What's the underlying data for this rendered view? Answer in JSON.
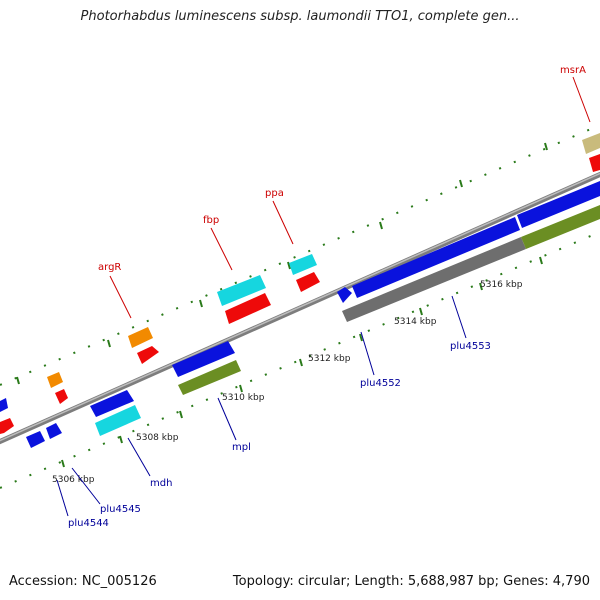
{
  "title": "Photorhabdus luminescens subsp. laumondii TTO1, complete gen...",
  "footer": {
    "accession": "Accession: NC_005126",
    "summary": "Topology: circular; Length: 5,688,987 bp; Genes: 4,790"
  },
  "ticks": [
    "5306 kbp",
    "5308 kbp",
    "5310 kbp",
    "5312 kbp",
    "5314 kbp",
    "5316 kbp"
  ],
  "gene_labels_top": [
    "argR",
    "fbp",
    "ppa",
    "msrA"
  ],
  "gene_labels_bottom": [
    "plu4544",
    "plu4545",
    "mdh",
    "mpl",
    "plu4552",
    "plu4553"
  ],
  "colors": {
    "blue": "#0a12dd",
    "red": "#ee0a0a",
    "cyan": "#16d6df",
    "orange": "#f28a00",
    "olive": "#6b8e23",
    "grey": "#777777",
    "khaki": "#c9bb7c",
    "tick_green": "#2a7a1a"
  }
}
